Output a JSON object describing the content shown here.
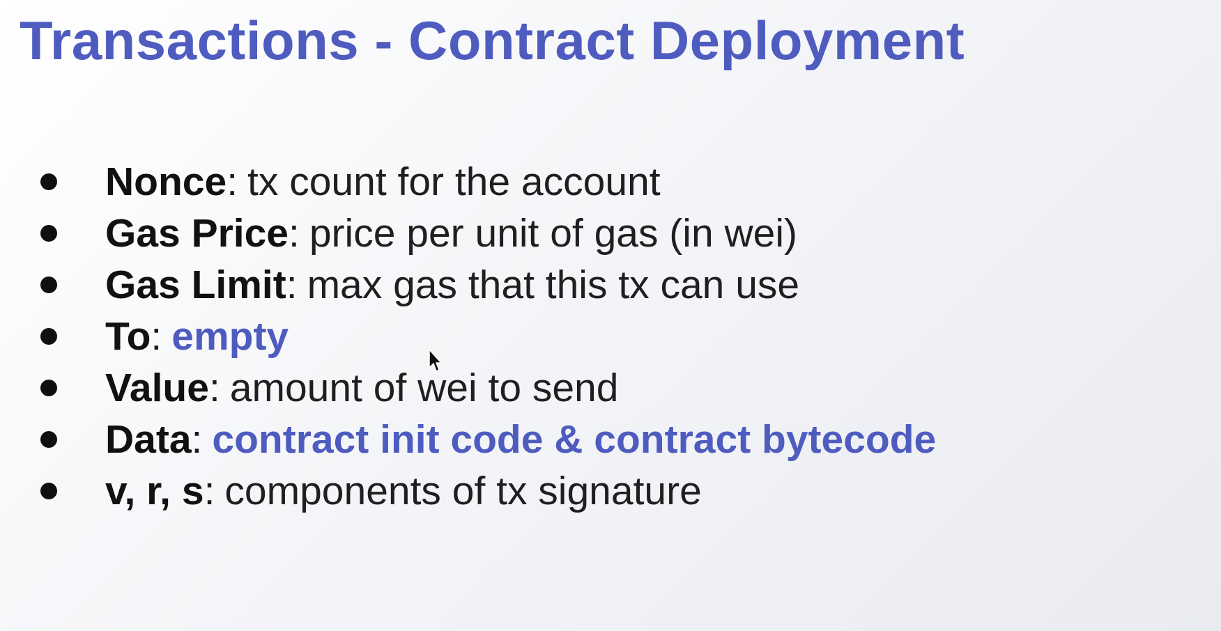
{
  "slide": {
    "title": "Transactions - Contract Deployment",
    "bullets": [
      {
        "term": "Nonce",
        "separator": ":",
        "desc": "tx count for the account",
        "accent": false
      },
      {
        "term": "Gas Price",
        "separator": ":",
        "desc": "price per unit of gas (in wei)",
        "accent": false
      },
      {
        "term": "Gas Limit",
        "separator": ":",
        "desc": "max gas that this tx can use",
        "accent": false
      },
      {
        "term": "To",
        "separator": ":",
        "desc": "empty",
        "accent": true
      },
      {
        "term": "Value",
        "separator": ":",
        "desc": "amount of wei to send",
        "accent": false
      },
      {
        "term": "Data",
        "separator": ":",
        "desc": "contract init code & contract bytecode",
        "accent": true
      },
      {
        "term": "v, r, s",
        "separator": ":",
        "desc": "components of tx signature",
        "accent": false
      }
    ]
  },
  "icons": {
    "bullet": "bullet-dot-icon",
    "cursor": "mouse-pointer-icon"
  },
  "colors": {
    "accent": "#4f5cbf",
    "text": "#1a1a1a",
    "background": "#f4f5f8"
  }
}
